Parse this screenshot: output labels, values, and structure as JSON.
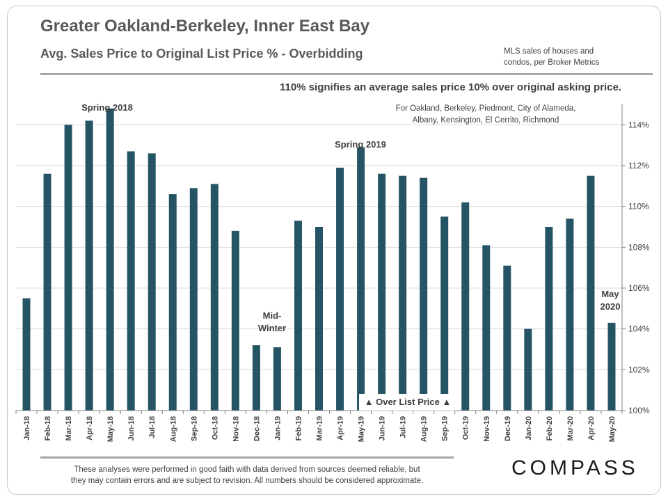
{
  "header": {
    "title": "Greater Oakland-Berkeley, Inner East Bay",
    "subtitle": "Avg. Sales Price to Original  List Price % - Overbidding",
    "source_line1": "MLS sales of houses and",
    "source_line2": "condos, per Broker Metrics"
  },
  "explanation": "110% signifies an average sales price 10% over original asking price.",
  "region_line1": "For Oakland,  Berkeley, Piedmont, City of Alameda,",
  "region_line2": "Albany,  Kensington, El Cerrito, Richmond",
  "annotations": {
    "spring_2018": "Spring 2018",
    "spring_2019": "Spring 2019",
    "mid_winter_1": "Mid-",
    "mid_winter_2": "Winter",
    "may_2020_1": "May",
    "may_2020_2": "2020",
    "over_list": "▲ Over List Price ▲"
  },
  "footer": {
    "disclaimer_line1": "These analyses were performed in good faith with data derived from sources deemed reliable, but",
    "disclaimer_line2": "they may contain errors and are subject to revision. All numbers should be considered  approximate.",
    "logo": "COMPASS"
  },
  "colors": {
    "bar": "#255564",
    "grid": "#d9d9d9",
    "text": "#404040"
  },
  "chart_data": {
    "type": "bar",
    "categories": [
      "Jan-18",
      "Feb-18",
      "Mar-18",
      "Apr-18",
      "May-18",
      "Jun-18",
      "Jul-18",
      "Aug-18",
      "Sep-18",
      "Oct-18",
      "Nov-18",
      "Dec-18",
      "Jan-19",
      "Feb-19",
      "Mar-19",
      "Apr-19",
      "May-19",
      "Jun-19",
      "Jul-19",
      "Aug-19",
      "Sep-19",
      "Oct-19",
      "Nov-19",
      "Dec-19",
      "Jan-20",
      "Feb-20",
      "Mar-20",
      "Apr-20",
      "May-20"
    ],
    "values": [
      105.5,
      111.6,
      114.0,
      114.2,
      114.8,
      112.7,
      112.6,
      110.6,
      110.9,
      111.1,
      108.8,
      103.2,
      103.1,
      109.3,
      109.0,
      111.9,
      112.9,
      111.6,
      111.5,
      111.4,
      109.5,
      110.2,
      108.1,
      107.1,
      104.0,
      109.0,
      109.4,
      111.5,
      104.3
    ],
    "ylim": [
      100,
      115
    ],
    "yticks": [
      100,
      102,
      104,
      106,
      108,
      110,
      112,
      114
    ],
    "ytick_labels": [
      "100%",
      "102%",
      "104%",
      "106%",
      "108%",
      "110%",
      "112%",
      "114%"
    ],
    "y_axis_side": "right",
    "grid": true
  }
}
